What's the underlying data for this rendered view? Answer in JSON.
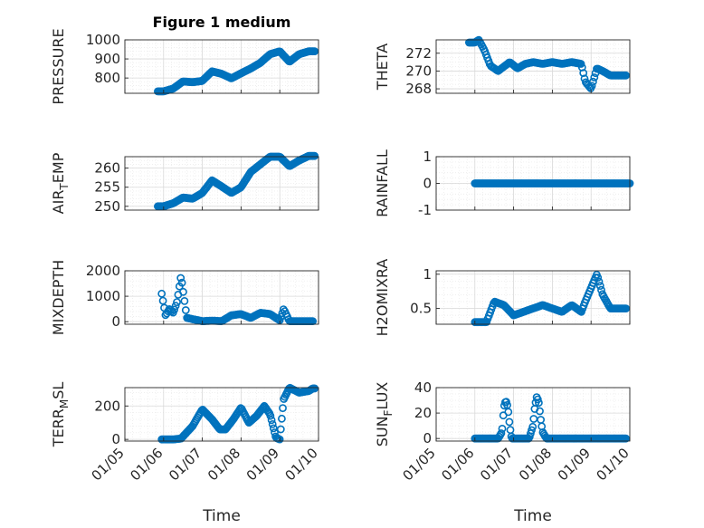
{
  "figure_title": "Figure 1 medium",
  "x_axis_label": "Time",
  "x_tick_labels": [
    "01/05",
    "01/06",
    "01/07",
    "01/08",
    "01/09",
    "01/10"
  ],
  "colors": {
    "marker": "#0072BD",
    "axis": "#262626",
    "grid": "#d9d9d9",
    "minor_grid": "#ececec"
  },
  "chart_data": [
    {
      "type": "scatter",
      "name": "pressure",
      "ylabel": "PRESSURE",
      "ylim": [
        720,
        1000
      ],
      "yticks": [
        800,
        900,
        1000
      ],
      "ytick_labels": [
        "800",
        "900",
        "1000"
      ],
      "minor_step": 20,
      "key_x": [
        1.0,
        1.25,
        1.5,
        1.75,
        2.0,
        2.25,
        2.5,
        2.75,
        3.0,
        3.25,
        3.5,
        3.75,
        4.0,
        4.25,
        4.5,
        4.75
      ],
      "key_y": [
        730,
        745,
        782,
        778,
        785,
        835,
        822,
        798,
        825,
        850,
        880,
        925,
        940,
        885,
        925,
        940
      ],
      "x_range": [
        0.85,
        4.9
      ],
      "n_points": 160
    },
    {
      "type": "scatter",
      "name": "theta",
      "ylabel": "THETA",
      "ylim": [
        267.5,
        273.5
      ],
      "yticks": [
        268,
        270,
        272
      ],
      "ytick_labels": [
        "268",
        "270",
        "272"
      ],
      "minor_step": 0.5,
      "key_x": [
        1.0,
        1.1,
        1.25,
        1.4,
        1.6,
        1.75,
        1.9,
        2.1,
        2.3,
        2.5,
        2.75,
        3.0,
        3.25,
        3.5,
        3.75,
        3.85,
        4.0,
        4.15,
        4.3,
        4.5,
        4.75,
        4.85
      ],
      "key_y": [
        273.2,
        273.5,
        272.3,
        270.6,
        270.0,
        270.5,
        271.0,
        270.3,
        270.8,
        271.0,
        270.8,
        271.0,
        270.8,
        271.0,
        270.8,
        268.8,
        268.0,
        270.3,
        270.0,
        269.5,
        269.5,
        269.5
      ],
      "x_range": [
        0.85,
        4.9
      ],
      "n_points": 130
    },
    {
      "type": "scatter",
      "name": "air_temp",
      "ylabel_main": "AIR",
      "ylabel_sub": "T",
      "ylabel_rest": "EMP",
      "ylim": [
        249,
        263
      ],
      "yticks": [
        250,
        255,
        260
      ],
      "ytick_labels": [
        "250",
        "255",
        "260"
      ],
      "minor_step": 1,
      "key_x": [
        1.0,
        1.25,
        1.5,
        1.75,
        2.0,
        2.25,
        2.5,
        2.75,
        3.0,
        3.25,
        3.5,
        3.75,
        4.0,
        4.25,
        4.5,
        4.75
      ],
      "key_y": [
        250,
        250.8,
        252.3,
        252.0,
        253.5,
        256.8,
        255.2,
        253.5,
        255.0,
        259.0,
        261.0,
        263.0,
        263.0,
        260.5,
        262.0,
        263.2
      ],
      "x_range": [
        0.85,
        4.9
      ],
      "n_points": 160
    },
    {
      "type": "scatter",
      "name": "rainfall",
      "ylabel": "RAINFALL",
      "ylim": [
        -1,
        1
      ],
      "yticks": [
        -1,
        0,
        1
      ],
      "ytick_labels": [
        "-1",
        "0",
        "1"
      ],
      "minor_step": 0.2,
      "key_x": [
        1.0,
        5.0
      ],
      "key_y": [
        0,
        0
      ],
      "x_range": [
        1.0,
        5.0
      ],
      "n_points": 150
    },
    {
      "type": "scatter",
      "name": "mixdepth",
      "ylabel": "MIXDEPTH",
      "ylim": [
        -100,
        2000
      ],
      "yticks": [
        0,
        1000,
        2000
      ],
      "ytick_labels": [
        "0",
        "1000",
        "2000"
      ],
      "minor_step": 200,
      "key_x": [
        0.95,
        1.05,
        1.15,
        1.25,
        1.35,
        1.45,
        1.6,
        1.75,
        2.0,
        2.25,
        2.5,
        2.75,
        3.0,
        3.25,
        3.5,
        3.75,
        4.0,
        4.1,
        4.25,
        4.5,
        4.75
      ],
      "key_y": [
        1100,
        250,
        500,
        350,
        800,
        1800,
        150,
        100,
        20,
        40,
        20,
        250,
        300,
        150,
        350,
        300,
        50,
        500,
        20,
        20,
        20
      ],
      "x_range": [
        0.95,
        4.85
      ],
      "n_points": 120
    },
    {
      "type": "scatter",
      "name": "h2omixra",
      "ylabel": "H2OMIXRA",
      "ylim": [
        0.27,
        1.05
      ],
      "yticks": [
        0.5,
        1.0
      ],
      "ytick_labels": [
        "0.5",
        "1"
      ],
      "minor_step": 0.1,
      "key_x": [
        1.0,
        1.3,
        1.5,
        1.75,
        2.0,
        2.25,
        2.5,
        2.75,
        3.0,
        3.25,
        3.5,
        3.75,
        3.85,
        4.0,
        4.15,
        4.3,
        4.5,
        4.75,
        4.85
      ],
      "key_y": [
        0.3,
        0.3,
        0.6,
        0.55,
        0.4,
        0.45,
        0.5,
        0.55,
        0.5,
        0.45,
        0.55,
        0.45,
        0.6,
        0.8,
        1.0,
        0.7,
        0.5,
        0.5,
        0.5
      ],
      "x_range": [
        1.0,
        4.9
      ],
      "n_points": 130
    },
    {
      "type": "scatter",
      "name": "terr_msl",
      "ylabel_main": "TERR",
      "ylabel_sub": "M",
      "ylabel_rest": "SL",
      "ylim": [
        -10,
        310
      ],
      "yticks": [
        0,
        200
      ],
      "ytick_labels": [
        "0",
        "200"
      ],
      "minor_step": 40,
      "key_x": [
        0.95,
        1.1,
        1.25,
        1.45,
        1.75,
        2.0,
        2.25,
        2.45,
        2.6,
        2.8,
        3.0,
        3.2,
        3.4,
        3.6,
        3.75,
        3.9,
        4.0,
        4.1,
        4.25,
        4.5,
        4.75,
        4.85
      ],
      "key_y": [
        0,
        0,
        0,
        5,
        80,
        180,
        120,
        60,
        60,
        120,
        190,
        100,
        140,
        200,
        150,
        10,
        0,
        240,
        310,
        280,
        290,
        305
      ],
      "x_range": [
        0.95,
        4.9
      ],
      "n_points": 150
    },
    {
      "type": "scatter",
      "name": "sun_flux",
      "ylabel_main": "SUN",
      "ylabel_sub": "F",
      "ylabel_rest": "LUX",
      "ylim": [
        -2,
        40
      ],
      "yticks": [
        0,
        20,
        40
      ],
      "ytick_labels": [
        "0",
        "20",
        "40"
      ],
      "minor_step": 5,
      "key_x": [
        1.0,
        1.6,
        1.7,
        1.75,
        1.8,
        1.85,
        1.9,
        1.95,
        2.0,
        2.4,
        2.5,
        2.55,
        2.6,
        2.65,
        2.7,
        2.75,
        2.85,
        3.5,
        4.9
      ],
      "key_y": [
        0,
        0,
        5,
        25,
        30,
        25,
        10,
        0,
        0,
        0,
        10,
        25,
        33,
        28,
        15,
        5,
        0,
        0,
        0
      ],
      "x_range": [
        1.0,
        4.9
      ],
      "n_points": 150
    }
  ]
}
